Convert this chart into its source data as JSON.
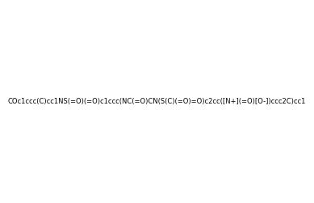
{
  "smiles": "COc1ccc(C)cc1NS(=O)(=O)c1ccc(NC(=O)CN(S(C)(=O)=O)c2cc([N+](=O)[O-])ccc2C)cc1",
  "image_size": 300,
  "background_color": "#f0f0f0",
  "title": ""
}
